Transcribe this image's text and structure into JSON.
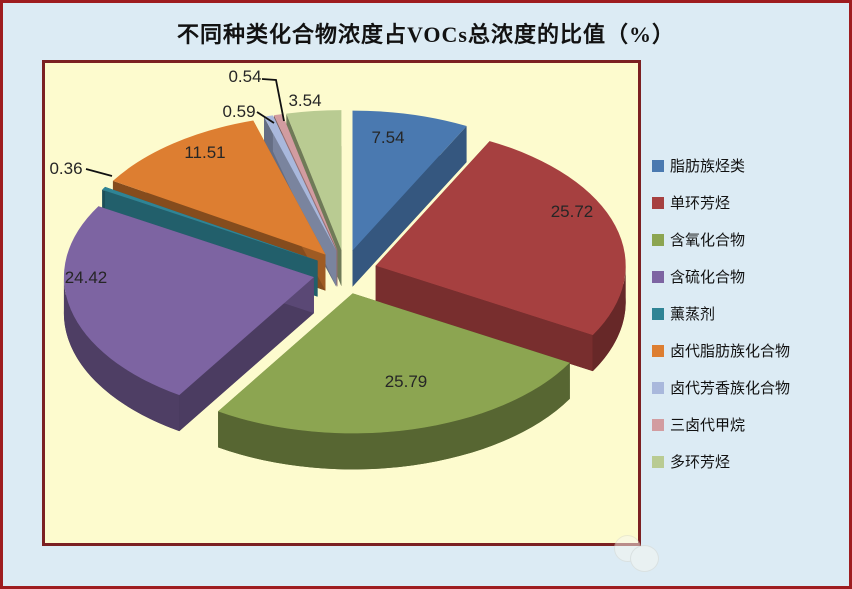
{
  "title": "不同种类化合物浓度占VOCs总浓度的比值（%）",
  "chart_data": {
    "type": "pie",
    "style": "3d-exploded",
    "title": "不同种类化合物浓度占VOCs总浓度的比值（%）",
    "unit": "%",
    "direction": "clockwise",
    "start_angle_deg": 0,
    "legend_position": "right",
    "categories": [
      "脂肪族烃类",
      "单环芳烃",
      "含氧化合物",
      "含硫化合物",
      "薰蒸剂",
      "卤代脂肪族化合物",
      "卤代芳香族化合物",
      "三卤代甲烷",
      "多环芳烃"
    ],
    "values": [
      7.54,
      25.72,
      25.79,
      24.42,
      0.36,
      11.51,
      0.59,
      0.54,
      3.54
    ],
    "data_labels": [
      "7.54",
      "25.72",
      "25.79",
      "24.42",
      "0.36",
      "11.51",
      "0.59",
      "0.54",
      "3.54"
    ],
    "colors": [
      "#4a79b0",
      "#a64040",
      "#8ca551",
      "#7d64a2",
      "#2f8495",
      "#dd7e31",
      "#a9b8dc",
      "#d29ca0",
      "#b9cb92"
    ]
  },
  "colors": {
    "canvas_background": "#dcebf4",
    "canvas_border": "#9e1c1f",
    "plot_background": "#fdfbce",
    "plot_border": "#7b2022",
    "title_text": "#121212",
    "data_label_text": "#262626",
    "legend_text": "#111111",
    "leader_line": "#111111"
  }
}
